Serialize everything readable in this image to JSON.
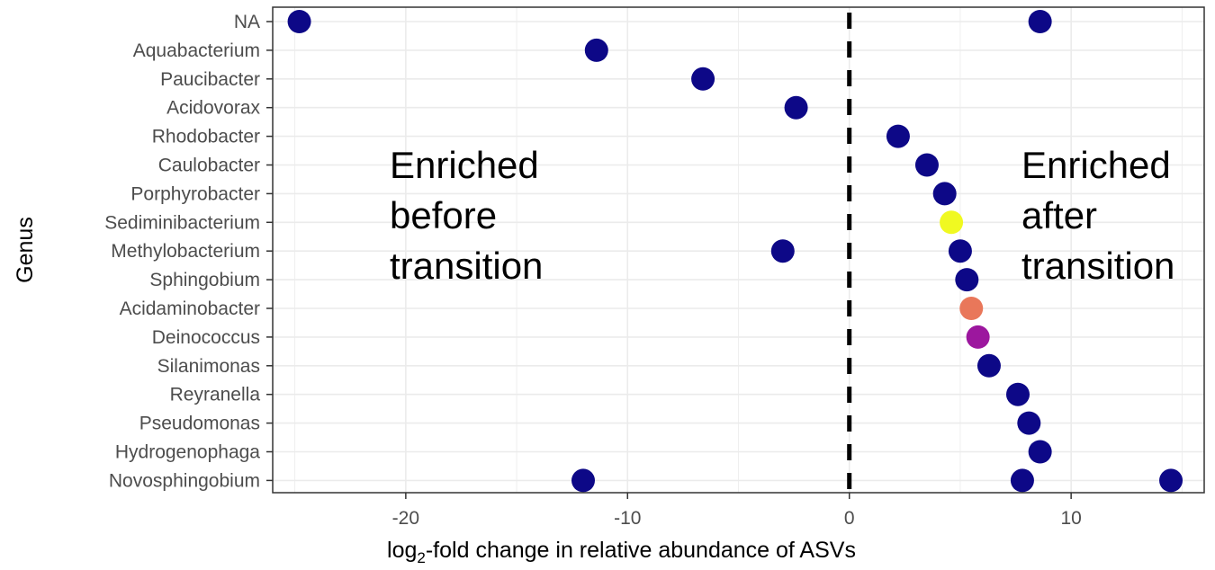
{
  "chart_data": {
    "type": "scatter",
    "xlabel_pre": "log",
    "xlabel_sub": "2",
    "xlabel_post": "-fold change in relative abundance of ASVs",
    "ylabel": "Genus",
    "xlim": [
      -26,
      16
    ],
    "x_ticks": [
      -20,
      -10,
      0,
      10
    ],
    "x_tick_labels": [
      "-20",
      "-10",
      "0",
      "10"
    ],
    "grid": true,
    "reference_line_x": 0,
    "categories": [
      "NA",
      "Aquabacterium",
      "Paucibacter",
      "Acidovorax",
      "Rhodobacter",
      "Caulobacter",
      "Porphyrobacter",
      "Sediminibacterium",
      "Methylobacterium",
      "Sphingobium",
      "Acidaminobacter",
      "Deinococcus",
      "Silanimonas",
      "Reyranella",
      "Pseudomonas",
      "Hydrogenophaga",
      "Novosphingobium"
    ],
    "points": [
      {
        "genus": "NA",
        "x": -24.8,
        "color": "#0d0887"
      },
      {
        "genus": "NA",
        "x": 8.6,
        "color": "#0d0887"
      },
      {
        "genus": "Aquabacterium",
        "x": -11.4,
        "color": "#0d0887"
      },
      {
        "genus": "Paucibacter",
        "x": -6.6,
        "color": "#0d0887"
      },
      {
        "genus": "Acidovorax",
        "x": -2.4,
        "color": "#0d0887"
      },
      {
        "genus": "Rhodobacter",
        "x": 2.2,
        "color": "#0d0887"
      },
      {
        "genus": "Caulobacter",
        "x": 3.5,
        "color": "#0d0887"
      },
      {
        "genus": "Porphyrobacter",
        "x": 4.3,
        "color": "#0d0887"
      },
      {
        "genus": "Sediminibacterium",
        "x": 4.6,
        "color": "#f0f921"
      },
      {
        "genus": "Methylobacterium",
        "x": -3.0,
        "color": "#0d0887"
      },
      {
        "genus": "Methylobacterium",
        "x": 5.0,
        "color": "#0d0887"
      },
      {
        "genus": "Sphingobium",
        "x": 5.3,
        "color": "#0d0887"
      },
      {
        "genus": "Acidaminobacter",
        "x": 5.5,
        "color": "#e9775a"
      },
      {
        "genus": "Deinococcus",
        "x": 5.8,
        "color": "#9c179e"
      },
      {
        "genus": "Silanimonas",
        "x": 6.3,
        "color": "#0d0887"
      },
      {
        "genus": "Reyranella",
        "x": 7.6,
        "color": "#0d0887"
      },
      {
        "genus": "Pseudomonas",
        "x": 8.1,
        "color": "#0d0887"
      },
      {
        "genus": "Hydrogenophaga",
        "x": 8.6,
        "color": "#0d0887"
      },
      {
        "genus": "Novosphingobium",
        "x": -12.0,
        "color": "#0d0887"
      },
      {
        "genus": "Novosphingobium",
        "x": 7.8,
        "color": "#0d0887"
      },
      {
        "genus": "Novosphingobium",
        "x": 14.5,
        "color": "#0d0887"
      }
    ],
    "annotations": [
      {
        "id": "before",
        "lines": [
          "Enriched",
          "before",
          "transition"
        ]
      },
      {
        "id": "after",
        "lines": [
          "Enriched",
          "after",
          "transition"
        ]
      }
    ]
  }
}
